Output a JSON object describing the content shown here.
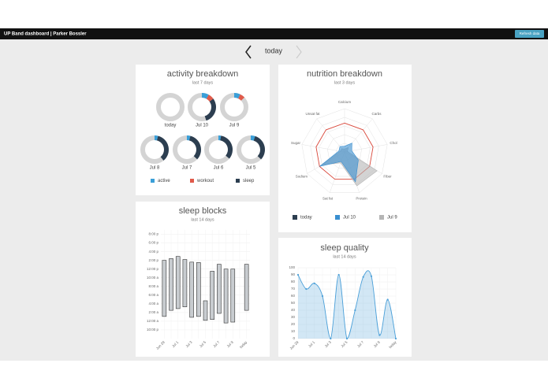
{
  "header": {
    "title": "UP Band dashboard | Parker Bossler",
    "button": "Refresh data"
  },
  "nav": {
    "current": "today"
  },
  "chart_data": [
    {
      "type": "donut-grid",
      "title": "activity breakdown",
      "subtitle": "last 7 days",
      "categories": [
        "today",
        "Jul 10",
        "Jul 9",
        "Jul 8",
        "Jul 7",
        "Jul 6",
        "Jul 5"
      ],
      "series": [
        {
          "name": "active",
          "color": "#3a9fd8",
          "values": [
            0,
            8,
            7,
            4,
            4,
            3,
            5
          ]
        },
        {
          "name": "workout",
          "color": "#e05a4a",
          "values": [
            0,
            7,
            6,
            0,
            0,
            0,
            0
          ]
        },
        {
          "name": "sleep",
          "color": "#2c3e50",
          "values": [
            0,
            30,
            0,
            35,
            33,
            33,
            32
          ]
        }
      ]
    },
    {
      "type": "radar",
      "title": "nutrition breakdown",
      "subtitle": "last 3 days",
      "axes": [
        "Calcium",
        "Carbs",
        "Chol",
        "Fiber",
        "Protein",
        "Sat fat",
        "Sodium",
        "Sugar",
        "Unsat fat"
      ],
      "rlim": [
        0,
        150
      ],
      "series": [
        {
          "name": "today",
          "color": "#2c3e50",
          "filled": true,
          "values": [
            0,
            0,
            0,
            0,
            0,
            0,
            0,
            0,
            0
          ]
        },
        {
          "name": "Jul 10",
          "color": "#3a8fd0",
          "filled": true,
          "values": [
            20,
            40,
            25,
            55,
            110,
            35,
            100,
            20,
            25
          ]
        },
        {
          "name": "Jul 9",
          "color": "#b5b5b5",
          "filled": true,
          "values": [
            10,
            20,
            10,
            130,
            125,
            40,
            90,
            15,
            15
          ]
        },
        {
          "color": "#d9473a",
          "filled": false,
          "values": [
            100,
            100,
            100,
            100,
            100,
            100,
            100,
            100,
            100
          ]
        }
      ]
    },
    {
      "type": "floating-bar",
      "title": "sleep blocks",
      "subtitle": "last 14 days",
      "categories": [
        "Jun 29",
        null,
        "Jul 1",
        null,
        "Jul 3",
        null,
        "Jul 5",
        null,
        "Jul 7",
        null,
        "Jul 9",
        null,
        "today"
      ],
      "lows": [
        1.1,
        2.5,
        2.9,
        3.3,
        0.9,
        1.1,
        0.2,
        0.4,
        1.8,
        -0.4,
        -0.2,
        null,
        2.5
      ],
      "highs": [
        14.0,
        14.4,
        14.9,
        14.2,
        13.6,
        13.5,
        4.7,
        11.5,
        13.1,
        12.0,
        12.0,
        null,
        13.1
      ],
      "color": "#c8ccd0",
      "ylim": [
        -4,
        21
      ],
      "yticks": [
        {
          "value": 20,
          "label": "8:00 p"
        },
        {
          "value": 18,
          "label": "6:00 p"
        },
        {
          "value": 16,
          "label": "4:00 p"
        },
        {
          "value": 14,
          "label": "2:00 p"
        },
        {
          "value": 12,
          "label": "12:00 p"
        },
        {
          "value": 10,
          "label": "10:00 a"
        },
        {
          "value": 8,
          "label": "8:00 a"
        },
        {
          "value": 6,
          "label": "6:00 a"
        },
        {
          "value": 4,
          "label": "4:00 a"
        },
        {
          "value": 2,
          "label": "2:00 a"
        },
        {
          "value": 0,
          "label": "12:00 a"
        },
        {
          "value": -2,
          "label": "10:00 p"
        }
      ],
      "grid": true
    },
    {
      "type": "area",
      "title": "sleep quality",
      "subtitle": "last 14 days",
      "categories": [
        "Jun 29",
        null,
        "Jul 1",
        null,
        "Jul 3",
        null,
        "Jul 5",
        null,
        "Jul 7",
        null,
        "Jul 9",
        null,
        "today"
      ],
      "values": [
        90,
        70,
        78,
        60,
        0,
        90,
        0,
        40,
        87,
        88,
        5,
        55,
        0
      ],
      "color": "#4a9fd8",
      "ylim": [
        0,
        100
      ],
      "yticks": [
        0,
        10,
        20,
        30,
        40,
        50,
        60,
        70,
        80,
        90,
        100
      ],
      "grid": true
    }
  ]
}
